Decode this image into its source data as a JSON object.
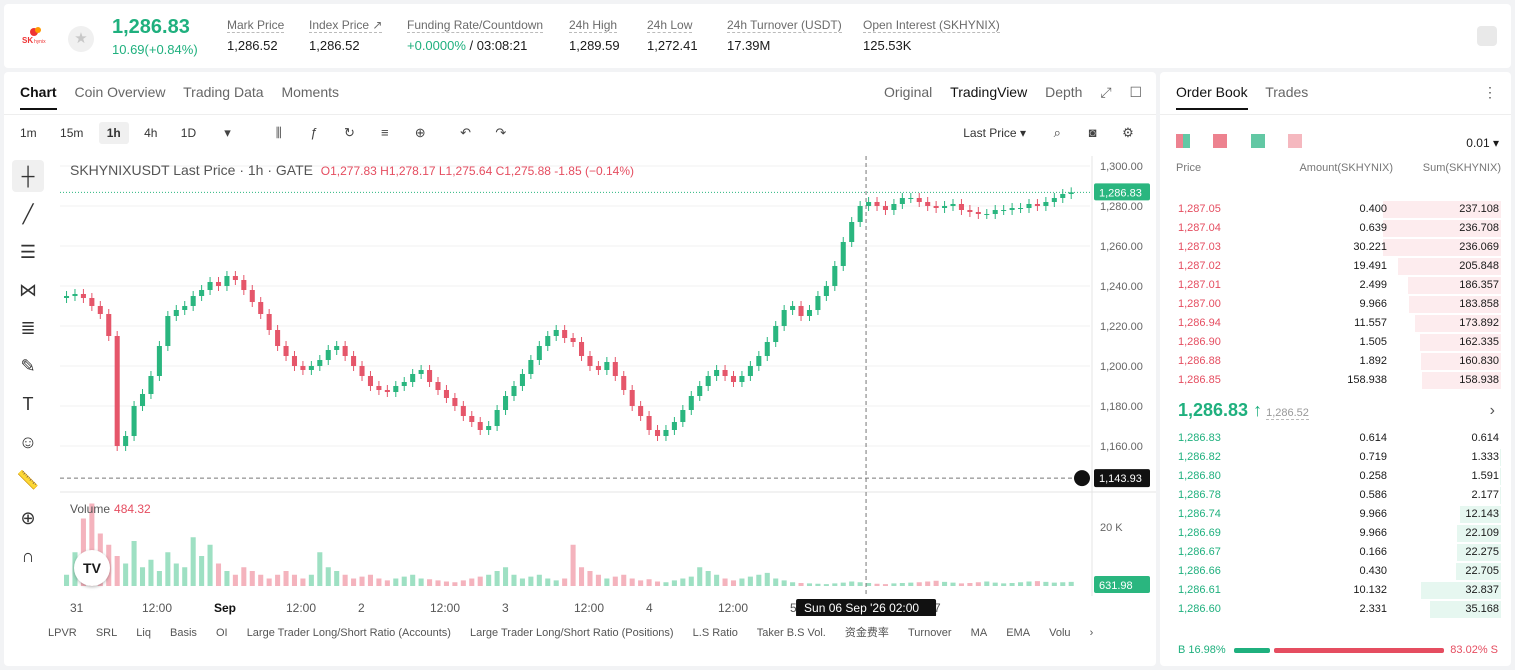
{
  "header": {
    "symbol_logo": "SK hynix",
    "last_price": "1,286.83",
    "change": "10.69(+0.84%)",
    "stats": [
      {
        "label": "Mark Price",
        "value": "1,286.52"
      },
      {
        "label": "Index Price ↗",
        "value": "1,286.52"
      },
      {
        "label": "Funding Rate/Countdown",
        "value_green": "+0.0000%",
        "value": " / 03:08:21"
      },
      {
        "label": "24h High",
        "value": "1,289.59"
      },
      {
        "label": "24h Low",
        "value": "1,272.41"
      },
      {
        "label": "24h Turnover (USDT)",
        "value": "17.39M"
      },
      {
        "label": "Open Interest (SKHYNIX)",
        "value": "125.53K"
      }
    ]
  },
  "chart_panel": {
    "tabs": [
      "Chart",
      "Coin Overview",
      "Trading Data",
      "Moments"
    ],
    "view_tabs": [
      "Original",
      "TradingView",
      "Depth"
    ],
    "timeframes": [
      "1m",
      "15m",
      "1h",
      "4h",
      "1D"
    ],
    "price_type": "Last Price ▾",
    "legend": {
      "title": "SKHYNIXUSDT Last Price · 1h · GATE",
      "ohlc": "O1,277.83  H1,278.17  L1,275.64  C1,275.88  -1.85 (−0.14%)"
    },
    "volume_label": "Volume",
    "volume_value": "484.32",
    "price_axis": [
      "1,300.00",
      "1,280.00",
      "1,260.00",
      "1,240.00",
      "1,220.00",
      "1,200.00",
      "1,180.00",
      "1,160.00"
    ],
    "last_price_tag": "1,286.83",
    "crosshair_tag": "1,143.93",
    "volume_axis": "20 K",
    "volume_tag": "631.98",
    "time_axis": [
      "31",
      "12:00",
      "Sep",
      "12:00",
      "2",
      "12:00",
      "3",
      "12:00",
      "4",
      "12:00",
      "5",
      "12:00",
      "7"
    ],
    "crosshair_time": "Sun 06 Sep '26   02:00",
    "bottom_indicators": [
      "LPVR",
      "SRL",
      "Liq",
      "Basis",
      "OI",
      "Large Trader Long/Short Ratio (Accounts)",
      "Large Trader Long/Short Ratio (Positions)",
      "L.S Ratio",
      "Taker B.S Vol.",
      "资金费率",
      "Turnover",
      "MA",
      "EMA",
      "Volu"
    ]
  },
  "chart_data": {
    "type": "candlestick",
    "title": "SKHYNIXUSDT Last Price · 1h · GATE",
    "ylim": [
      1140,
      1305
    ],
    "y_ticks": [
      1160,
      1180,
      1200,
      1220,
      1240,
      1260,
      1280,
      1300
    ],
    "close_path": [
      1235,
      1236,
      1234,
      1230,
      1226,
      1215,
      1160,
      1165,
      1180,
      1186,
      1195,
      1210,
      1225,
      1228,
      1230,
      1235,
      1238,
      1242,
      1240,
      1245,
      1243,
      1238,
      1232,
      1226,
      1218,
      1210,
      1205,
      1200,
      1198,
      1200,
      1203,
      1208,
      1210,
      1205,
      1200,
      1195,
      1190,
      1188,
      1187,
      1190,
      1192,
      1196,
      1198,
      1192,
      1188,
      1184,
      1180,
      1175,
      1172,
      1168,
      1170,
      1178,
      1185,
      1190,
      1196,
      1203,
      1210,
      1215,
      1218,
      1214,
      1212,
      1205,
      1200,
      1198,
      1202,
      1195,
      1188,
      1180,
      1175,
      1168,
      1165,
      1168,
      1172,
      1178,
      1185,
      1190,
      1195,
      1198,
      1195,
      1192,
      1195,
      1200,
      1205,
      1212,
      1220,
      1228,
      1230,
      1225,
      1228,
      1235,
      1240,
      1250,
      1262,
      1272,
      1280,
      1282,
      1280,
      1278,
      1281,
      1284,
      1284,
      1282,
      1280,
      1279,
      1280,
      1281,
      1278,
      1277,
      1276,
      1276,
      1278,
      1278,
      1279,
      1279,
      1281,
      1280,
      1282,
      1284,
      1286,
      1286.83
    ],
    "volume_max": 24000,
    "volume_values": [
      3000,
      9000,
      18000,
      22000,
      14000,
      11000,
      8000,
      6000,
      12000,
      5000,
      7000,
      4000,
      9000,
      6000,
      5000,
      13000,
      8000,
      11000,
      6000,
      4000,
      3000,
      5000,
      4000,
      3000,
      2000,
      3000,
      4000,
      3000,
      2000,
      3000,
      9000,
      5000,
      4000,
      3000,
      2000,
      2500,
      3000,
      2000,
      1500,
      2000,
      2500,
      3000,
      2000,
      1800,
      1500,
      1200,
      1000,
      1500,
      2000,
      2500,
      3000,
      4000,
      5000,
      3000,
      2000,
      2500,
      3000,
      2000,
      1500,
      2000,
      11000,
      5000,
      4000,
      3000,
      2000,
      2500,
      3000,
      2000,
      1500,
      1800,
      1200,
      1000,
      1500,
      2000,
      2500,
      5000,
      4000,
      3000,
      2000,
      1500,
      2000,
      2500,
      3000,
      3500,
      2000,
      1500,
      1000,
      800,
      700,
      600,
      500,
      700,
      900,
      1200,
      1000,
      800,
      600,
      500,
      700,
      800,
      900,
      1000,
      1200,
      1400,
      1100,
      900,
      700,
      800,
      1000,
      1200,
      900,
      700,
      800,
      1000,
      1200,
      1300,
      1100,
      900,
      1000,
      1100
    ]
  },
  "order_book": {
    "tabs": [
      "Order Book",
      "Trades"
    ],
    "precision": "0.01 ▾",
    "columns": [
      "Price",
      "Amount(SKHYNIX)",
      "Sum(SKHYNIX)"
    ],
    "asks": [
      {
        "price": "1,287.05",
        "amount": "0.400",
        "sum": "237.108",
        "depth": 1.0
      },
      {
        "price": "1,287.04",
        "amount": "0.639",
        "sum": "236.708",
        "depth": 0.998
      },
      {
        "price": "1,287.03",
        "amount": "30.221",
        "sum": "236.069",
        "depth": 0.996
      },
      {
        "price": "1,287.02",
        "amount": "19.491",
        "sum": "205.848",
        "depth": 0.87
      },
      {
        "price": "1,287.01",
        "amount": "2.499",
        "sum": "186.357",
        "depth": 0.79
      },
      {
        "price": "1,287.00",
        "amount": "9.966",
        "sum": "183.858",
        "depth": 0.78
      },
      {
        "price": "1,286.94",
        "amount": "11.557",
        "sum": "173.892",
        "depth": 0.73
      },
      {
        "price": "1,286.90",
        "amount": "1.505",
        "sum": "162.335",
        "depth": 0.69
      },
      {
        "price": "1,286.88",
        "amount": "1.892",
        "sum": "160.830",
        "depth": 0.68
      },
      {
        "price": "1,286.85",
        "amount": "158.938",
        "sum": "158.938",
        "depth": 0.67
      }
    ],
    "mid_price": "1,286.83 ↑",
    "mark_price": "1,286.52",
    "bids": [
      {
        "price": "1,286.83",
        "amount": "0.614",
        "sum": "0.614",
        "depth": 0.003
      },
      {
        "price": "1,286.82",
        "amount": "0.719",
        "sum": "1.333",
        "depth": 0.006
      },
      {
        "price": "1,286.80",
        "amount": "0.258",
        "sum": "1.591",
        "depth": 0.007
      },
      {
        "price": "1,286.78",
        "amount": "0.586",
        "sum": "2.177",
        "depth": 0.01
      },
      {
        "price": "1,286.74",
        "amount": "9.966",
        "sum": "12.143",
        "depth": 0.35
      },
      {
        "price": "1,286.69",
        "amount": "9.966",
        "sum": "22.109",
        "depth": 0.37
      },
      {
        "price": "1,286.67",
        "amount": "0.166",
        "sum": "22.275",
        "depth": 0.37
      },
      {
        "price": "1,286.66",
        "amount": "0.430",
        "sum": "22.705",
        "depth": 0.38
      },
      {
        "price": "1,286.61",
        "amount": "10.132",
        "sum": "32.837",
        "depth": 0.68
      },
      {
        "price": "1,286.60",
        "amount": "2.331",
        "sum": "35.168",
        "depth": 0.6
      }
    ],
    "buy_ratio": "B  16.98%",
    "sell_ratio": "83.02%  S"
  }
}
